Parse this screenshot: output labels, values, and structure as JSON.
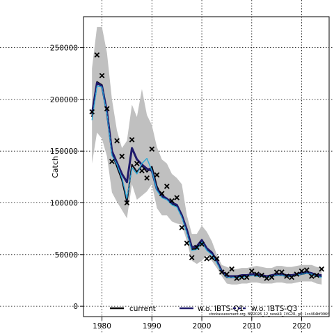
{
  "chart_data": {
    "type": "line",
    "title": "",
    "xlabel": "",
    "ylabel": "Catch",
    "xlim": [
      1976.3,
      2025.5
    ],
    "ylim": [
      -10000,
      280000
    ],
    "x_ticks": [
      1980,
      1990,
      2000,
      2010,
      2020
    ],
    "y_ticks": [
      0,
      50000,
      100000,
      150000,
      200000,
      250000
    ],
    "grid": true,
    "legend_placement": "bottom",
    "footnote": "stockassessment.org, BM2026_12_newAR_1VG2R, git: 1cc464bf096f",
    "years": [
      1978,
      1979,
      1980,
      1981,
      1982,
      1983,
      1984,
      1985,
      1986,
      1987,
      1988,
      1989,
      1990,
      1991,
      1992,
      1993,
      1994,
      1995,
      1996,
      1997,
      1998,
      1999,
      2000,
      2001,
      2002,
      2003,
      2004,
      2005,
      2006,
      2007,
      2008,
      2009,
      2010,
      2011,
      2012,
      2013,
      2014,
      2015,
      2016,
      2017,
      2018,
      2019,
      2020,
      2021,
      2022,
      2023,
      2024
    ],
    "band": {
      "name": "confidence interval",
      "color": "#c0c0c0",
      "lower": [
        138000,
        168000,
        162000,
        145000,
        110000,
        101000,
        93000,
        85000,
        118000,
        103000,
        107000,
        111000,
        118000,
        95000,
        88000,
        88000,
        82000,
        80000,
        79000,
        63000,
        44000,
        41000,
        44000,
        49000,
        44000,
        37000,
        29000,
        22000,
        21000,
        21000,
        22000,
        22000,
        23000,
        23000,
        22000,
        22000,
        22000,
        23000,
        23000,
        22000,
        22000,
        23000,
        24000,
        24000,
        24000,
        22000,
        21000
      ],
      "upper": [
        230000,
        270000,
        270000,
        245000,
        200000,
        170000,
        153000,
        160000,
        195000,
        183000,
        210000,
        185000,
        175000,
        154000,
        142000,
        138000,
        128000,
        124000,
        118000,
        88000,
        70000,
        70000,
        78000,
        72000,
        63000,
        50000,
        40000,
        38000,
        36000,
        36000,
        37000,
        37000,
        38000,
        39000,
        38000,
        37000,
        37000,
        39000,
        39000,
        38000,
        38000,
        39000,
        40000,
        40000,
        40000,
        38000,
        37000
      ]
    },
    "observations": {
      "name": "observed catch",
      "marker": "x",
      "color": "#000000",
      "values": [
        188000,
        243000,
        223000,
        191000,
        140000,
        160000,
        145000,
        100000,
        161000,
        138000,
        131000,
        124000,
        152000,
        127000,
        109000,
        116000,
        102000,
        105000,
        76000,
        61000,
        47000,
        57000,
        60000,
        46000,
        47000,
        46000,
        33000,
        31000,
        36000,
        27000,
        28000,
        28000,
        34000,
        31000,
        30000,
        27000,
        28000,
        33000,
        33000,
        29000,
        28000,
        31000,
        34000,
        35000,
        29000,
        30000,
        36000
      ]
    },
    "series": [
      {
        "name": "current",
        "color": "#000000",
        "width": 2,
        "dash": "",
        "values": [
          183000,
          217000,
          214000,
          188000,
          148000,
          135000,
          122000,
          101000,
          137000,
          130000,
          136000,
          130000,
          135000,
          116000,
          106000,
          104000,
          99000,
          97000,
          87000,
          72000,
          55000,
          56000,
          63000,
          55000,
          51000,
          43000,
          33000,
          28000,
          28000,
          28000,
          29000,
          29000,
          30000,
          30000,
          29000,
          28000,
          29000,
          30000,
          30000,
          29000,
          29000,
          30000,
          31000,
          32000,
          31000,
          29000,
          29000
        ]
      },
      {
        "name": "w.o. IBTS-Q1",
        "color": "#1f1a6b",
        "width": 3,
        "dash": "",
        "values": [
          186000,
          216000,
          213000,
          188000,
          150000,
          139000,
          128000,
          120000,
          153000,
          142000,
          137000,
          133000,
          131000,
          113000,
          107000,
          104000,
          100000,
          98000,
          88000,
          74000,
          57000,
          58000,
          64000,
          56000,
          52000,
          44000,
          34000,
          29000,
          29000,
          29000,
          30000,
          30000,
          31000,
          31000,
          30000,
          29000,
          30000,
          31000,
          31000,
          30000,
          30000,
          31000,
          32000,
          33000,
          32000,
          30000,
          30000
        ]
      },
      {
        "name": "w.o. IBTS-Q3",
        "color": "#29a9d8",
        "width": 1.4,
        "dash": "",
        "values": [
          180000,
          213000,
          212000,
          186000,
          146000,
          137000,
          124000,
          104000,
          134000,
          128000,
          138000,
          143000,
          131000,
          112000,
          105000,
          103000,
          98000,
          96000,
          86000,
          71000,
          54000,
          55000,
          62000,
          54000,
          50000,
          42000,
          33000,
          28000,
          28000,
          28000,
          28000,
          29000,
          30000,
          29000,
          29000,
          28000,
          29000,
          30000,
          30000,
          29000,
          29000,
          30000,
          31000,
          32000,
          31000,
          29000,
          28000
        ]
      }
    ],
    "legend_dash_color": "#1f1a6b"
  }
}
